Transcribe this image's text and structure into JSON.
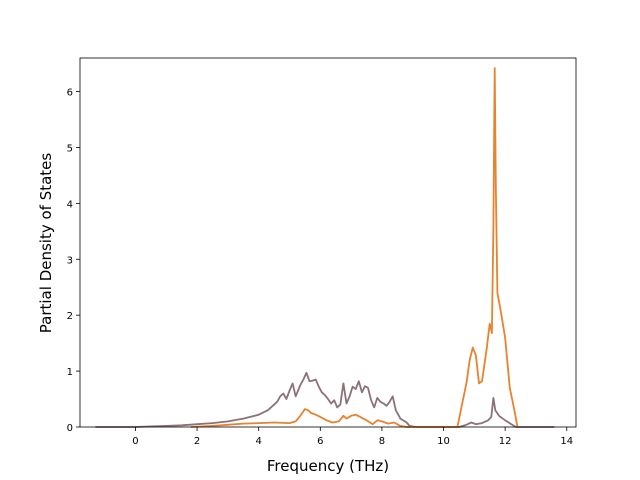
{
  "chart_data": {
    "type": "line",
    "title": "",
    "xlabel": "Frequency (THz)",
    "ylabel": "Partial Density of States",
    "xlim": [
      -1.8,
      14.3
    ],
    "ylim": [
      0,
      6.6
    ],
    "xticks": [
      0,
      2,
      4,
      6,
      8,
      10,
      12,
      14
    ],
    "yticks": [
      0,
      1,
      2,
      3,
      4,
      5,
      6
    ],
    "grid": false,
    "legend": "none",
    "series": [
      {
        "color": "#8c7177",
        "points": [
          [
            -1.3,
            0
          ],
          [
            0.0,
            0.0
          ],
          [
            0.5,
            0.01
          ],
          [
            1.0,
            0.02
          ],
          [
            1.5,
            0.03
          ],
          [
            2.0,
            0.05
          ],
          [
            2.5,
            0.07
          ],
          [
            3.0,
            0.1
          ],
          [
            3.5,
            0.15
          ],
          [
            4.0,
            0.22
          ],
          [
            4.3,
            0.3
          ],
          [
            4.6,
            0.45
          ],
          [
            4.7,
            0.55
          ],
          [
            4.8,
            0.6
          ],
          [
            4.9,
            0.5
          ],
          [
            5.0,
            0.65
          ],
          [
            5.1,
            0.78
          ],
          [
            5.2,
            0.55
          ],
          [
            5.35,
            0.75
          ],
          [
            5.45,
            0.85
          ],
          [
            5.55,
            0.97
          ],
          [
            5.65,
            0.82
          ],
          [
            5.75,
            0.83
          ],
          [
            5.85,
            0.85
          ],
          [
            5.95,
            0.72
          ],
          [
            6.05,
            0.62
          ],
          [
            6.15,
            0.57
          ],
          [
            6.25,
            0.5
          ],
          [
            6.35,
            0.42
          ],
          [
            6.45,
            0.48
          ],
          [
            6.55,
            0.35
          ],
          [
            6.65,
            0.4
          ],
          [
            6.75,
            0.78
          ],
          [
            6.85,
            0.42
          ],
          [
            6.95,
            0.55
          ],
          [
            7.05,
            0.72
          ],
          [
            7.15,
            0.68
          ],
          [
            7.25,
            0.82
          ],
          [
            7.35,
            0.62
          ],
          [
            7.45,
            0.73
          ],
          [
            7.55,
            0.7
          ],
          [
            7.65,
            0.48
          ],
          [
            7.75,
            0.35
          ],
          [
            7.85,
            0.52
          ],
          [
            7.95,
            0.45
          ],
          [
            8.05,
            0.42
          ],
          [
            8.15,
            0.38
          ],
          [
            8.25,
            0.45
          ],
          [
            8.35,
            0.55
          ],
          [
            8.45,
            0.3
          ],
          [
            8.6,
            0.15
          ],
          [
            8.8,
            0.08
          ],
          [
            8.9,
            0.02
          ],
          [
            9.1,
            0.0
          ],
          [
            10.5,
            0.0
          ],
          [
            10.7,
            0.03
          ],
          [
            10.9,
            0.08
          ],
          [
            11.05,
            0.05
          ],
          [
            11.25,
            0.07
          ],
          [
            11.45,
            0.12
          ],
          [
            11.55,
            0.18
          ],
          [
            11.62,
            0.52
          ],
          [
            11.68,
            0.3
          ],
          [
            11.8,
            0.2
          ],
          [
            12.0,
            0.12
          ],
          [
            12.2,
            0.05
          ],
          [
            12.35,
            0.0
          ],
          [
            13.6,
            0
          ]
        ]
      },
      {
        "color": "#e8822e",
        "points": [
          [
            1.8,
            0.0
          ],
          [
            2.5,
            0.02
          ],
          [
            3.0,
            0.04
          ],
          [
            3.5,
            0.06
          ],
          [
            4.0,
            0.07
          ],
          [
            4.5,
            0.08
          ],
          [
            5.0,
            0.07
          ],
          [
            5.2,
            0.1
          ],
          [
            5.35,
            0.2
          ],
          [
            5.5,
            0.32
          ],
          [
            5.6,
            0.3
          ],
          [
            5.7,
            0.25
          ],
          [
            5.85,
            0.22
          ],
          [
            6.0,
            0.18
          ],
          [
            6.2,
            0.12
          ],
          [
            6.4,
            0.08
          ],
          [
            6.6,
            0.1
          ],
          [
            6.75,
            0.2
          ],
          [
            6.85,
            0.15
          ],
          [
            7.0,
            0.2
          ],
          [
            7.15,
            0.22
          ],
          [
            7.3,
            0.18
          ],
          [
            7.5,
            0.12
          ],
          [
            7.7,
            0.05
          ],
          [
            7.85,
            0.12
          ],
          [
            8.0,
            0.1
          ],
          [
            8.2,
            0.06
          ],
          [
            8.4,
            0.08
          ],
          [
            8.6,
            0.02
          ],
          [
            8.8,
            0.0
          ],
          [
            10.45,
            0.0
          ],
          [
            10.6,
            0.4
          ],
          [
            10.75,
            0.8
          ],
          [
            10.85,
            1.2
          ],
          [
            10.95,
            1.42
          ],
          [
            11.05,
            1.28
          ],
          [
            11.15,
            0.78
          ],
          [
            11.25,
            0.82
          ],
          [
            11.4,
            1.4
          ],
          [
            11.5,
            1.85
          ],
          [
            11.57,
            1.68
          ],
          [
            11.62,
            3.6
          ],
          [
            11.66,
            6.42
          ],
          [
            11.7,
            4.2
          ],
          [
            11.75,
            2.4
          ],
          [
            11.85,
            2.1
          ],
          [
            12.0,
            1.6
          ],
          [
            12.15,
            0.7
          ],
          [
            12.3,
            0.3
          ],
          [
            12.4,
            0.0
          ]
        ]
      }
    ]
  }
}
